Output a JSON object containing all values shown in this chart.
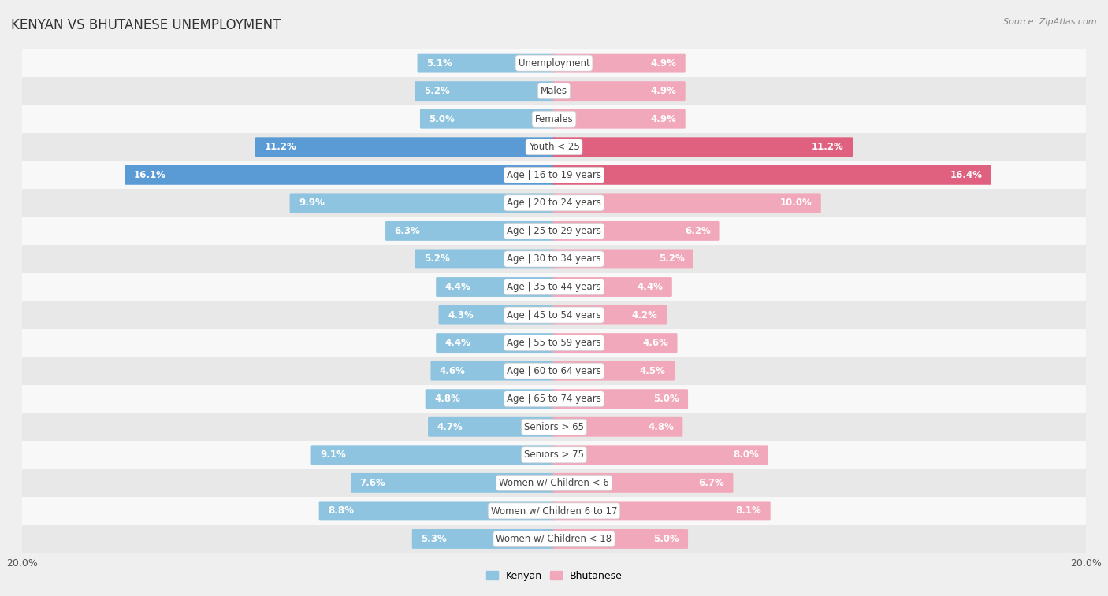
{
  "title": "KENYAN VS BHUTANESE UNEMPLOYMENT",
  "source": "Source: ZipAtlas.com",
  "categories": [
    "Unemployment",
    "Males",
    "Females",
    "Youth < 25",
    "Age | 16 to 19 years",
    "Age | 20 to 24 years",
    "Age | 25 to 29 years",
    "Age | 30 to 34 years",
    "Age | 35 to 44 years",
    "Age | 45 to 54 years",
    "Age | 55 to 59 years",
    "Age | 60 to 64 years",
    "Age | 65 to 74 years",
    "Seniors > 65",
    "Seniors > 75",
    "Women w/ Children < 6",
    "Women w/ Children 6 to 17",
    "Women w/ Children < 18"
  ],
  "kenyan": [
    5.1,
    5.2,
    5.0,
    11.2,
    16.1,
    9.9,
    6.3,
    5.2,
    4.4,
    4.3,
    4.4,
    4.6,
    4.8,
    4.7,
    9.1,
    7.6,
    8.8,
    5.3
  ],
  "bhutanese": [
    4.9,
    4.9,
    4.9,
    11.2,
    16.4,
    10.0,
    6.2,
    5.2,
    4.4,
    4.2,
    4.6,
    4.5,
    5.0,
    4.8,
    8.0,
    6.7,
    8.1,
    5.0
  ],
  "kenyan_color": "#8ec4e0",
  "bhutanese_color": "#f2a8bb",
  "highlight_kenyan_color": "#5b9bd5",
  "highlight_bhutanese_color": "#e06080",
  "bar_height": 0.62,
  "xlim": 20.0,
  "bg_color": "#efefef",
  "row_bg_white": "#f8f8f8",
  "row_bg_gray": "#e8e8e8",
  "label_inside_color_kenyan": "#ffffff",
  "label_inside_color_bhutanese": "#ffffff",
  "label_outside_color": "#555555",
  "legend_kenyan": "Kenyan",
  "legend_bhutanese": "Bhutanese",
  "x_tick_labels": [
    "20.0%",
    "",
    "",
    "",
    "",
    "",
    "",
    "",
    "20.0%"
  ],
  "x_ticks": [
    -20,
    -15,
    -10,
    -5,
    0,
    5,
    10,
    15,
    20
  ]
}
